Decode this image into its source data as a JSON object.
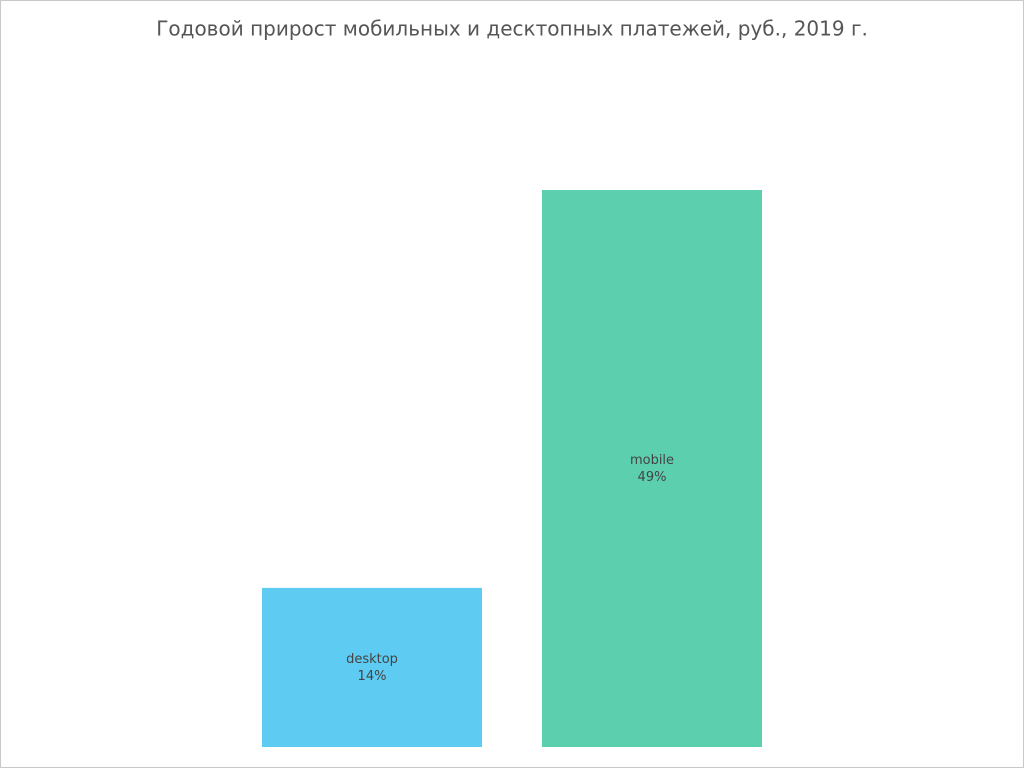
{
  "chart_data": {
    "type": "bar",
    "title": "Годовой прирост мобильных и десктопных платежей, руб., 2019 г.",
    "categories": [
      "desktop",
      "mobile"
    ],
    "values": [
      14,
      49
    ],
    "value_labels": [
      "14%",
      "49%"
    ],
    "colors": [
      "#5ecbf2",
      "#5ccfae"
    ]
  }
}
